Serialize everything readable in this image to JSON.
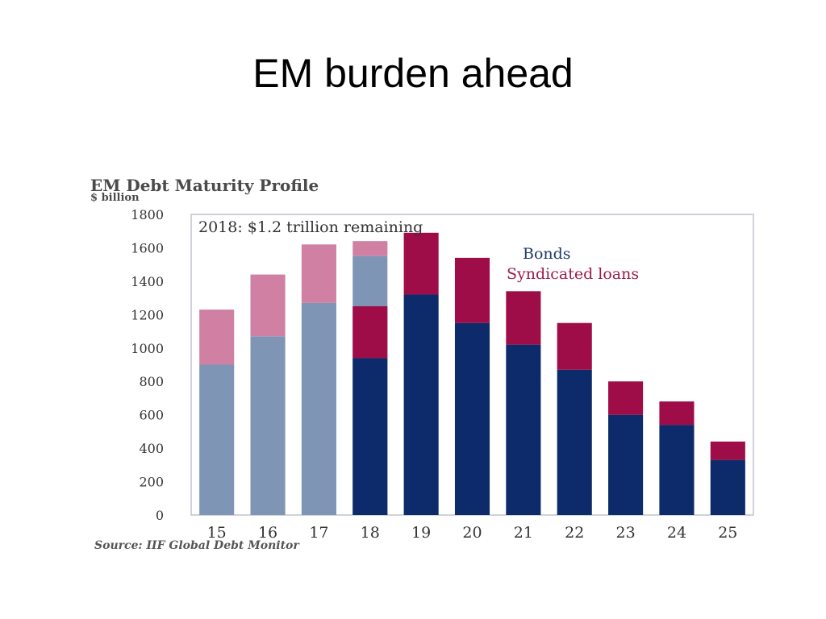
{
  "slide": {
    "title": "EM burden ahead"
  },
  "chart_data": {
    "type": "bar",
    "stacked": true,
    "title": "EM Debt Maturity Profile",
    "unit_label": "$ billion",
    "source": "Source: IIF Global Debt Monitor",
    "annotation": "2018: $1.2 trillion remaining",
    "categories": [
      "15",
      "16",
      "17",
      "18",
      "19",
      "20",
      "21",
      "22",
      "23",
      "24",
      "25"
    ],
    "ylim": [
      0,
      1800
    ],
    "yticks": [
      "1800",
      "1600",
      "1400",
      "1200",
      "1000",
      "800",
      "600",
      "400",
      "200",
      "0"
    ],
    "grid": false,
    "legend_position": "top-right",
    "series": [
      {
        "name": "Bonds",
        "values": [
          900,
          1070,
          1270,
          940,
          1320,
          1150,
          1020,
          870,
          600,
          540,
          330
        ],
        "color": "#0d2a6b"
      },
      {
        "name": "Syndicated loans",
        "values": [
          330,
          370,
          350,
          310,
          370,
          390,
          320,
          280,
          200,
          140,
          110
        ],
        "color": "#9e0d47"
      }
    ],
    "past_overlay": {
      "categories": [
        "15",
        "16",
        "17",
        "18"
      ],
      "bonds_values": [
        900,
        1070,
        1270,
        1550
      ],
      "loans_values": [
        330,
        370,
        350,
        90
      ],
      "bonds_color": "#7f95b5",
      "loans_color": "#cf80a3"
    }
  }
}
